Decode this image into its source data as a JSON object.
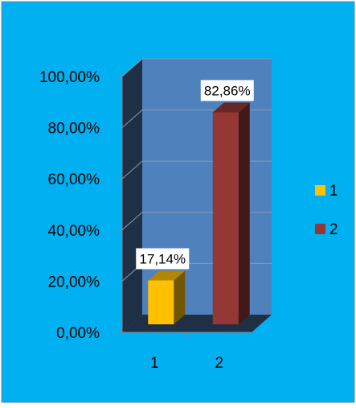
{
  "chart_data": {
    "type": "bar",
    "style": "3d-column",
    "categories": [
      "1",
      "2"
    ],
    "values": [
      17.14,
      82.86
    ],
    "value_labels": [
      "17,14%",
      "82,86%"
    ],
    "series_colors": [
      "#FFC000",
      "#953735"
    ],
    "legend": {
      "placement": "right",
      "entries": [
        {
          "label": "1",
          "color": "#FFC000"
        },
        {
          "label": "2",
          "color": "#953735"
        }
      ]
    },
    "y_ticks": [
      "0,00%",
      "20,00%",
      "40,00%",
      "60,00%",
      "80,00%",
      "100,00%"
    ],
    "ylim": [
      0,
      100
    ],
    "y_unit": "percent",
    "grid": true,
    "title": "",
    "xlabel": "",
    "ylabel": "",
    "colors": {
      "background": "#00B0F0",
      "plot_back_wall": "#4F81BD",
      "plot_side_wall": "#1F2F45",
      "plot_floor": "#1F2F45"
    }
  }
}
